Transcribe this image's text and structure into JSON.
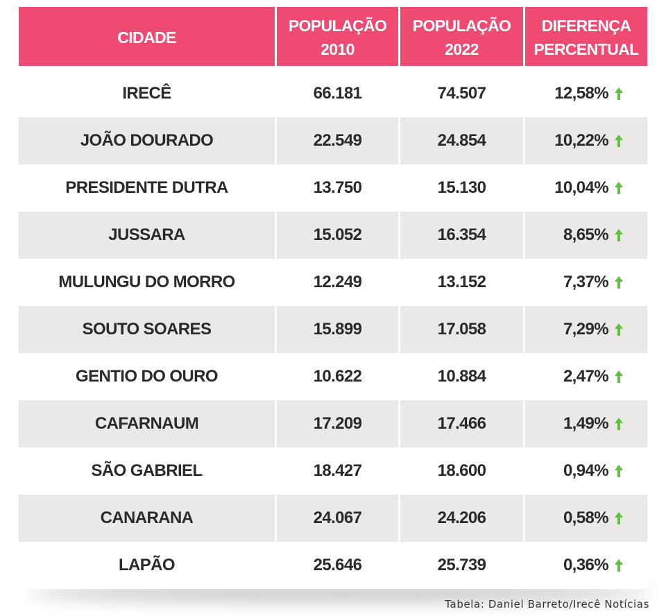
{
  "header": {
    "cidade": "CIDADE",
    "pop2010_line1": "POPULAÇÃO",
    "pop2010_line2": "2010",
    "pop2022_line1": "POPULAÇÃO",
    "pop2022_line2": "2022",
    "diff_line1": "DIFERENÇA",
    "diff_line2": "PERCENTUAL"
  },
  "rows": [
    {
      "city": "IRECÊ",
      "pop2010": "66.181",
      "pop2022": "74.507",
      "diff": "12,58%"
    },
    {
      "city": "JOÃO DOURADO",
      "pop2010": "22.549",
      "pop2022": "24.854",
      "diff": "10,22%"
    },
    {
      "city": "PRESIDENTE DUTRA",
      "pop2010": "13.750",
      "pop2022": "15.130",
      "diff": "10,04%"
    },
    {
      "city": "JUSSARA",
      "pop2010": "15.052",
      "pop2022": "16.354",
      "diff": "8,65%"
    },
    {
      "city": "MULUNGU DO MORRO",
      "pop2010": "12.249",
      "pop2022": "13.152",
      "diff": "7,37%"
    },
    {
      "city": "SOUTO SOARES",
      "pop2010": "15.899",
      "pop2022": "17.058",
      "diff": "7,29%"
    },
    {
      "city": "GENTIO DO OURO",
      "pop2010": "10.622",
      "pop2022": "10.884",
      "diff": "2,47%"
    },
    {
      "city": "CAFARNAUM",
      "pop2010": "17.209",
      "pop2022": "17.466",
      "diff": "1,49%"
    },
    {
      "city": "SÃO GABRIEL",
      "pop2010": "18.427",
      "pop2022": "18.600",
      "diff": "0,94%"
    },
    {
      "city": "CANARANA",
      "pop2010": "24.067",
      "pop2022": "24.206",
      "diff": "0,58%"
    },
    {
      "city": "LAPÃO",
      "pop2010": "25.646",
      "pop2022": "25.739",
      "diff": "0,36%"
    }
  ],
  "trend_icon": "arrow-up-icon",
  "colors": {
    "header_bg": "#ef4a72",
    "alt_row_bg": "#ebe8e8",
    "arrow": "#5cc43a"
  },
  "credit": "Tabela: Daniel Barreto/Irecê Notícias"
}
